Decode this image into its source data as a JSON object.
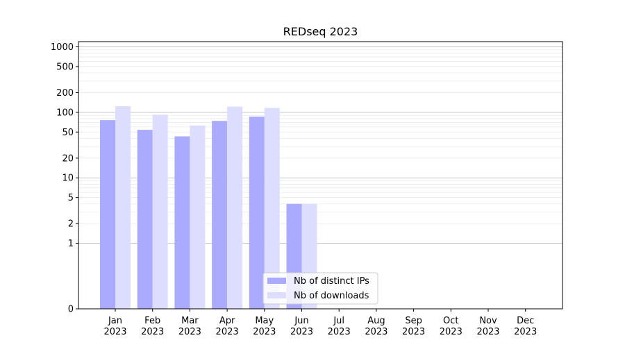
{
  "chart_data": {
    "type": "bar",
    "title": "REDseq 2023",
    "xlabel": "",
    "ylabel": "",
    "yscale": "symlog",
    "ylim": [
      0,
      1200
    ],
    "yticks": [
      0,
      1,
      2,
      5,
      10,
      20,
      50,
      100,
      200,
      500,
      1000
    ],
    "grid": true,
    "legend_position": "lower-center",
    "categories": [
      {
        "month": "Jan",
        "year": "2023"
      },
      {
        "month": "Feb",
        "year": "2023"
      },
      {
        "month": "Mar",
        "year": "2023"
      },
      {
        "month": "Apr",
        "year": "2023"
      },
      {
        "month": "May",
        "year": "2023"
      },
      {
        "month": "Jun",
        "year": "2023"
      },
      {
        "month": "Jul",
        "year": "2023"
      },
      {
        "month": "Aug",
        "year": "2023"
      },
      {
        "month": "Sep",
        "year": "2023"
      },
      {
        "month": "Oct",
        "year": "2023"
      },
      {
        "month": "Nov",
        "year": "2023"
      },
      {
        "month": "Dec",
        "year": "2023"
      }
    ],
    "series": [
      {
        "name": "Nb of distinct IPs",
        "color": "#aaaaff",
        "values": [
          76,
          54,
          43,
          74,
          86,
          4,
          0,
          0,
          0,
          0,
          0,
          0
        ]
      },
      {
        "name": "Nb of downloads",
        "color": "#ddddff",
        "values": [
          124,
          92,
          63,
          122,
          117,
          4,
          0,
          0,
          0,
          0,
          0,
          0
        ]
      }
    ]
  }
}
